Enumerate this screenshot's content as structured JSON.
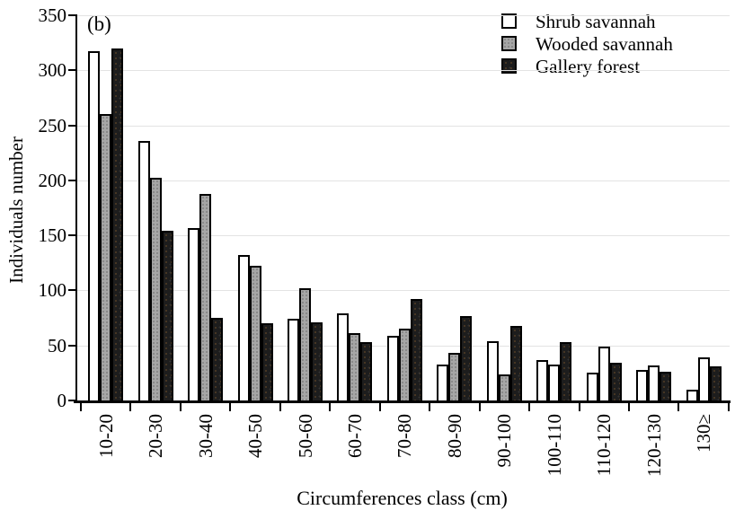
{
  "chart_data": {
    "type": "bar",
    "panel_label": "(b)",
    "title": "",
    "xlabel": "Circumferences class (cm)",
    "ylabel": "Individuals number",
    "categories": [
      "10-20",
      "20-30",
      "30-40",
      "40-50",
      "50-60",
      "60-70",
      "70-80",
      "80-90",
      "90-100",
      "100-110",
      "110-120",
      "120-130",
      "130≥"
    ],
    "series": [
      {
        "name": "Shrub savannah",
        "fill": "#ffffff",
        "values": [
          317,
          236,
          157,
          132,
          74,
          79,
          59,
          33,
          54,
          37,
          25,
          28,
          10
        ]
      },
      {
        "name": "Wooded savannah",
        "fill": "#a6a6a6",
        "values": [
          260,
          202,
          188,
          122,
          102,
          61,
          65,
          43,
          24,
          33,
          49,
          32,
          39
        ],
        "bars_rendered_white_indices": [
          9,
          10,
          11,
          12
        ]
      },
      {
        "name": "Gallery forest",
        "fill": "#1d1d1d",
        "values": [
          320,
          154,
          75,
          70,
          71,
          53,
          92,
          77,
          68,
          53,
          34,
          26,
          31
        ]
      }
    ],
    "ylim": [
      0,
      350
    ],
    "ytick_step": 50,
    "ytick_labels": [
      "0",
      "50",
      "100",
      "150",
      "200",
      "250",
      "300",
      "350"
    ],
    "grid": "horizontal",
    "legend_position": "top-right",
    "axis_color": "#000000",
    "bar_border_color": "#000000",
    "gridline_color": "#e3e3e3"
  }
}
